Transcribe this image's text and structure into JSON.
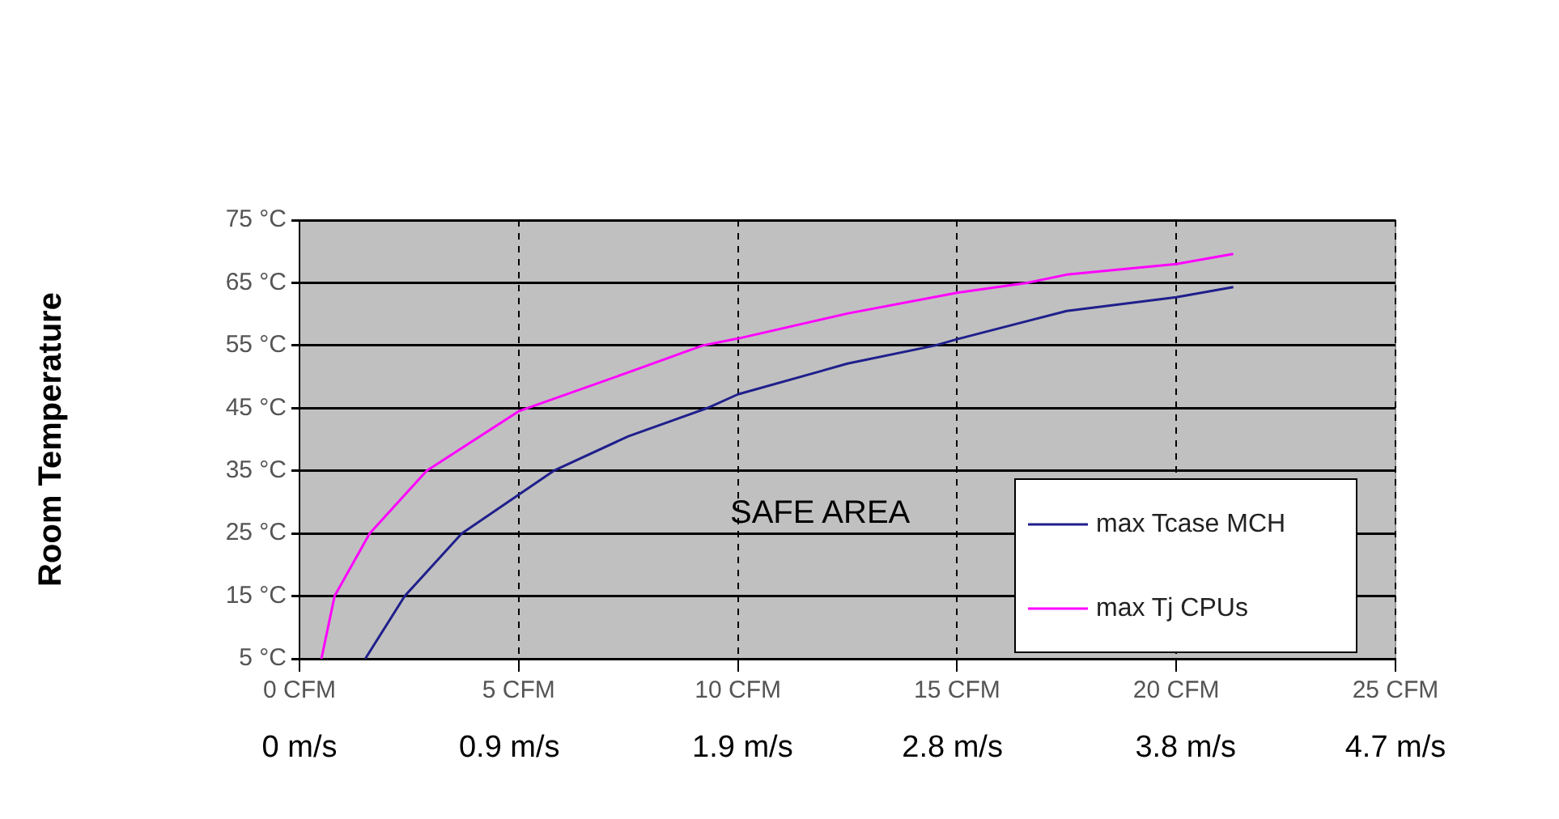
{
  "chart_data": {
    "type": "line",
    "ylabel": "Room Temperature",
    "xlim": [
      0,
      25
    ],
    "xticks": [
      {
        "value": 0,
        "label": "0 CFM"
      },
      {
        "value": 5,
        "label": "5 CFM"
      },
      {
        "value": 10,
        "label": "10 CFM"
      },
      {
        "value": 15,
        "label": "15 CFM"
      },
      {
        "value": 20,
        "label": "20 CFM"
      },
      {
        "value": 25,
        "label": "25 CFM"
      }
    ],
    "x2lim": [
      0,
      4.7
    ],
    "x2ticks": [
      {
        "value": 0,
        "label": "0 m/s"
      },
      {
        "value": 0.9,
        "label": "0.9 m/s"
      },
      {
        "value": 1.9,
        "label": "1.9 m/s"
      },
      {
        "value": 2.8,
        "label": "2.8 m/s"
      },
      {
        "value": 3.8,
        "label": "3.8 m/s"
      },
      {
        "value": 4.7,
        "label": "4.7 m/s"
      }
    ],
    "ylim": [
      5,
      75
    ],
    "yticks": [
      {
        "value": 5,
        "label": "5 °C"
      },
      {
        "value": 15,
        "label": "15 °C"
      },
      {
        "value": 25,
        "label": "25 °C"
      },
      {
        "value": 35,
        "label": "35 °C"
      },
      {
        "value": 45,
        "label": "45 °C"
      },
      {
        "value": 55,
        "label": "55 °C"
      },
      {
        "value": 65,
        "label": "65 °C"
      },
      {
        "value": 75,
        "label": "75 °C"
      }
    ],
    "series": [
      {
        "name": "max Tcase MCH",
        "color": "#1f1f8c",
        "x": [
          1.5,
          2.4,
          3.7,
          5,
          5.8,
          7.5,
          9.3,
          10,
          12.5,
          14.5,
          15,
          17.5,
          20,
          21.3
        ],
        "values": [
          5,
          15,
          25,
          31.2,
          35,
          40.5,
          45,
          47.2,
          52.1,
          55,
          56,
          60.5,
          62.7,
          64.3
        ]
      },
      {
        "name": "max Tj CPUs",
        "color": "#ff00ff",
        "x": [
          0.5,
          0.8,
          1.6,
          2.9,
          5,
          7.5,
          9.2,
          10,
          12.5,
          15,
          16.6,
          17.5,
          20,
          21.3
        ],
        "values": [
          5,
          15,
          25,
          35,
          44.5,
          50.7,
          55,
          56.1,
          60.1,
          63.4,
          65,
          66.3,
          68,
          69.6
        ]
      }
    ],
    "annotations": [
      "SAFE AREA"
    ],
    "grid": true,
    "legend": "bottom right",
    "marker": "none",
    "line_style": "solid"
  }
}
